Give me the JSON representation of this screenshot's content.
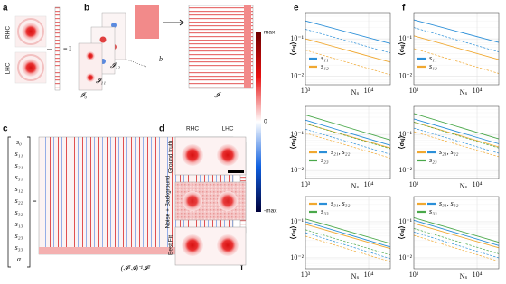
{
  "panel_a": {
    "label": "a",
    "rows": [
      "RHC",
      "LHC"
    ],
    "equals": "=",
    "vector": "I"
  },
  "panel_b": {
    "label": "b",
    "frames": [
      "𝓘₀",
      "𝓘₁₁",
      "𝓘₁₂"
    ],
    "background": "b",
    "matrix": "𝓘"
  },
  "colorbar": {
    "ticks": [
      "max",
      "0",
      "-max"
    ]
  },
  "panel_c": {
    "label": "c",
    "unknowns": [
      "s₀",
      "s₁₁",
      "s₂₁",
      "s₃₁",
      "s₁₂",
      "s₂₂",
      "s₃₂",
      "s₁₃",
      "s₂₃",
      "s₃₃",
      "α"
    ],
    "equals": "=",
    "formula": "(𝓘ᵀ𝓘)⁻¹𝓘ᵀ",
    "vector": "I"
  },
  "panel_d": {
    "label": "d",
    "columns": [
      "RHC",
      "LHC"
    ],
    "rows": [
      "Ground truth",
      "Noise + Background",
      "Best Fit"
    ]
  },
  "panel_e": {
    "label": "e"
  },
  "panel_f": {
    "label": "f"
  },
  "chart_data": [
    {
      "type": "line",
      "xlabel": "Nₛ",
      "ylabel": "⟨σₛⱼ⟩",
      "log": true,
      "grid": true,
      "legend_position": "lower-left",
      "xlim": [
        1000,
        22000
      ],
      "xticks": [
        {
          "value": 1000,
          "label": "10³"
        },
        {
          "value": 10000,
          "label": "10⁴"
        }
      ],
      "ylim": [
        0.006,
        0.5
      ],
      "yticks": [
        {
          "value": 0.01,
          "label": "10⁻²"
        },
        {
          "value": 0.1,
          "label": "10⁻¹"
        }
      ],
      "legend": [
        {
          "label": "s₁₁",
          "colors": [
            "#2b8fd8"
          ]
        },
        {
          "label": "s₁₂",
          "colors": [
            "#f0a830"
          ]
        }
      ],
      "series": [
        {
          "color": "#2b8fd8",
          "dashed": false,
          "x": [
            1000,
            22000
          ],
          "values": [
            0.3,
            0.075
          ]
        },
        {
          "color": "#2b8fd8",
          "dashed": true,
          "x": [
            1000,
            22000
          ],
          "values": [
            0.18,
            0.042
          ]
        },
        {
          "color": "#f0a830",
          "dashed": false,
          "x": [
            1000,
            22000
          ],
          "values": [
            0.1,
            0.024
          ]
        },
        {
          "color": "#f0a830",
          "dashed": true,
          "x": [
            1000,
            22000
          ],
          "values": [
            0.05,
            0.011
          ]
        }
      ]
    },
    {
      "type": "line",
      "xlabel": "Nₛ",
      "ylabel": "⟨σₛⱼ⟩",
      "log": true,
      "grid": true,
      "legend_position": "lower-left",
      "xlim": [
        1000,
        22000
      ],
      "xticks": [
        {
          "value": 1000,
          "label": "10³"
        },
        {
          "value": 10000,
          "label": "10⁴"
        }
      ],
      "ylim": [
        0.006,
        0.5
      ],
      "yticks": [
        {
          "value": 0.01,
          "label": "10⁻²"
        },
        {
          "value": 0.1,
          "label": "10⁻¹"
        }
      ],
      "legend": [
        {
          "label": "s₁₁",
          "colors": [
            "#2b8fd8"
          ]
        },
        {
          "label": "s₁₂",
          "colors": [
            "#f0a830"
          ]
        }
      ],
      "series": [
        {
          "color": "#2b8fd8",
          "dashed": false,
          "x": [
            1000,
            22000
          ],
          "values": [
            0.32,
            0.08
          ]
        },
        {
          "color": "#2b8fd8",
          "dashed": true,
          "x": [
            1000,
            22000
          ],
          "values": [
            0.2,
            0.045
          ]
        },
        {
          "color": "#f0a830",
          "dashed": false,
          "x": [
            1000,
            22000
          ],
          "values": [
            0.12,
            0.028
          ]
        },
        {
          "color": "#f0a830",
          "dashed": true,
          "x": [
            1000,
            22000
          ],
          "values": [
            0.055,
            0.012
          ]
        }
      ]
    },
    {
      "type": "line",
      "xlabel": "Nₛ",
      "ylabel": "⟨σₛⱼ⟩",
      "log": true,
      "grid": true,
      "legend_position": "lower-left",
      "xlim": [
        1000,
        22000
      ],
      "xticks": [
        {
          "value": 1000,
          "label": "10³"
        },
        {
          "value": 10000,
          "label": "10⁴"
        }
      ],
      "ylim": [
        0.006,
        0.6
      ],
      "yticks": [
        {
          "value": 0.01,
          "label": "10⁻²"
        },
        {
          "value": 0.1,
          "label": "10⁻¹"
        }
      ],
      "legend": [
        {
          "label": "s₂₁, s₂₂",
          "colors": [
            "#f0a830",
            "#2b8fd8"
          ]
        },
        {
          "label": "s₂₃",
          "colors": [
            "#4aa84a"
          ]
        }
      ],
      "series": [
        {
          "color": "#4aa84a",
          "dashed": false,
          "x": [
            1000,
            22000
          ],
          "values": [
            0.35,
            0.07
          ]
        },
        {
          "color": "#2b8fd8",
          "dashed": false,
          "x": [
            1000,
            22000
          ],
          "values": [
            0.25,
            0.05
          ]
        },
        {
          "color": "#f0a830",
          "dashed": false,
          "x": [
            1000,
            22000
          ],
          "values": [
            0.2,
            0.042
          ]
        },
        {
          "color": "#4aa84a",
          "dashed": true,
          "x": [
            1000,
            22000
          ],
          "values": [
            0.2,
            0.04
          ]
        },
        {
          "color": "#2b8fd8",
          "dashed": true,
          "x": [
            1000,
            22000
          ],
          "values": [
            0.14,
            0.028
          ]
        },
        {
          "color": "#f0a830",
          "dashed": true,
          "x": [
            1000,
            22000
          ],
          "values": [
            0.11,
            0.022
          ]
        }
      ]
    },
    {
      "type": "line",
      "xlabel": "Nₛ",
      "ylabel": "⟨σₛⱼ⟩",
      "log": true,
      "grid": true,
      "legend_position": "lower-left",
      "xlim": [
        1000,
        22000
      ],
      "xticks": [
        {
          "value": 1000,
          "label": "10³"
        },
        {
          "value": 10000,
          "label": "10⁴"
        }
      ],
      "ylim": [
        0.006,
        0.6
      ],
      "yticks": [
        {
          "value": 0.01,
          "label": "10⁻²"
        },
        {
          "value": 0.1,
          "label": "10⁻¹"
        }
      ],
      "legend": [
        {
          "label": "s₂₁, s₂₂",
          "colors": [
            "#f0a830",
            "#2b8fd8"
          ]
        },
        {
          "label": "s₂₃",
          "colors": [
            "#4aa84a"
          ]
        }
      ],
      "series": [
        {
          "color": "#4aa84a",
          "dashed": false,
          "x": [
            1000,
            22000
          ],
          "values": [
            0.38,
            0.075
          ]
        },
        {
          "color": "#2b8fd8",
          "dashed": false,
          "x": [
            1000,
            22000
          ],
          "values": [
            0.27,
            0.055
          ]
        },
        {
          "color": "#f0a830",
          "dashed": false,
          "x": [
            1000,
            22000
          ],
          "values": [
            0.22,
            0.045
          ]
        },
        {
          "color": "#4aa84a",
          "dashed": true,
          "x": [
            1000,
            22000
          ],
          "values": [
            0.22,
            0.042
          ]
        },
        {
          "color": "#2b8fd8",
          "dashed": true,
          "x": [
            1000,
            22000
          ],
          "values": [
            0.15,
            0.03
          ]
        },
        {
          "color": "#f0a830",
          "dashed": true,
          "x": [
            1000,
            22000
          ],
          "values": [
            0.12,
            0.024
          ]
        }
      ]
    },
    {
      "type": "line",
      "xlabel": "Nₛ",
      "ylabel": "⟨σₛⱼ⟩",
      "log": true,
      "grid": true,
      "legend_position": "upper-left",
      "xlim": [
        1000,
        22000
      ],
      "xticks": [
        {
          "value": 1000,
          "label": "10³"
        },
        {
          "value": 10000,
          "label": "10⁴"
        }
      ],
      "ylim": [
        0.005,
        0.5
      ],
      "yticks": [
        {
          "value": 0.01,
          "label": "10⁻²"
        },
        {
          "value": 0.1,
          "label": "10⁻¹"
        }
      ],
      "legend": [
        {
          "label": "s₃₁, s₃₂",
          "colors": [
            "#f0a830",
            "#2b8fd8"
          ]
        },
        {
          "label": "s₃₃",
          "colors": [
            "#4aa84a"
          ]
        }
      ],
      "series": [
        {
          "color": "#4aa84a",
          "dashed": false,
          "x": [
            1000,
            22000
          ],
          "values": [
            0.12,
            0.025
          ]
        },
        {
          "color": "#2b8fd8",
          "dashed": false,
          "x": [
            1000,
            22000
          ],
          "values": [
            0.1,
            0.02
          ]
        },
        {
          "color": "#f0a830",
          "dashed": false,
          "x": [
            1000,
            22000
          ],
          "values": [
            0.085,
            0.018
          ]
        },
        {
          "color": "#4aa84a",
          "dashed": true,
          "x": [
            1000,
            22000
          ],
          "values": [
            0.06,
            0.012
          ]
        },
        {
          "color": "#2b8fd8",
          "dashed": true,
          "x": [
            1000,
            22000
          ],
          "values": [
            0.05,
            0.0095
          ]
        },
        {
          "color": "#f0a830",
          "dashed": true,
          "x": [
            1000,
            22000
          ],
          "values": [
            0.04,
            0.0078
          ]
        }
      ]
    },
    {
      "type": "line",
      "xlabel": "Nₛ",
      "ylabel": "⟨σₛⱼ⟩",
      "log": true,
      "grid": true,
      "legend_position": "upper-left",
      "xlim": [
        1000,
        22000
      ],
      "xticks": [
        {
          "value": 1000,
          "label": "10³"
        },
        {
          "value": 10000,
          "label": "10⁴"
        }
      ],
      "ylim": [
        0.005,
        0.5
      ],
      "yticks": [
        {
          "value": 0.01,
          "label": "10⁻²"
        },
        {
          "value": 0.1,
          "label": "10⁻¹"
        }
      ],
      "legend": [
        {
          "label": "s₃₁, s₃₂",
          "colors": [
            "#f0a830",
            "#2b8fd8"
          ]
        },
        {
          "label": "s₃₃",
          "colors": [
            "#4aa84a"
          ]
        }
      ],
      "series": [
        {
          "color": "#4aa84a",
          "dashed": false,
          "x": [
            1000,
            22000
          ],
          "values": [
            0.13,
            0.027
          ]
        },
        {
          "color": "#2b8fd8",
          "dashed": false,
          "x": [
            1000,
            22000
          ],
          "values": [
            0.11,
            0.022
          ]
        },
        {
          "color": "#f0a830",
          "dashed": false,
          "x": [
            1000,
            22000
          ],
          "values": [
            0.09,
            0.019
          ]
        },
        {
          "color": "#4aa84a",
          "dashed": true,
          "x": [
            1000,
            22000
          ],
          "values": [
            0.065,
            0.013
          ]
        },
        {
          "color": "#2b8fd8",
          "dashed": true,
          "x": [
            1000,
            22000
          ],
          "values": [
            0.052,
            0.01
          ]
        },
        {
          "color": "#f0a830",
          "dashed": true,
          "x": [
            1000,
            22000
          ],
          "values": [
            0.042,
            0.008
          ]
        }
      ]
    }
  ]
}
